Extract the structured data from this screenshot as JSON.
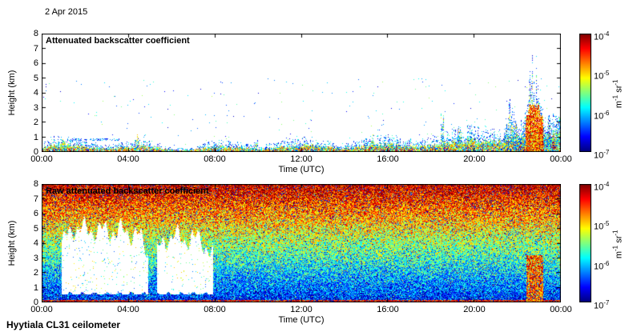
{
  "figure": {
    "date_label": "2 Apr 2015",
    "footer": "Hyytiala CL31 ceilometer",
    "background_color": "#ffffff",
    "axis_color": "#000000"
  },
  "chart_data": [
    {
      "type": "heatmap",
      "panel": "top",
      "title": "Attenuated backscatter coefficient",
      "xlabel": "Time (UTC)",
      "ylabel": "Height (km)",
      "x_ticks": [
        "00:00",
        "04:00",
        "08:00",
        "12:00",
        "16:00",
        "20:00",
        "00:00"
      ],
      "x_tick_hours": [
        0,
        4,
        8,
        12,
        16,
        20,
        24
      ],
      "x_range_hours": [
        0,
        24
      ],
      "y_ticks": [
        "8",
        "7",
        "6",
        "5",
        "4",
        "3",
        "2",
        "1",
        "0"
      ],
      "y_range_km": [
        0,
        8
      ],
      "grid": false,
      "colorbar": {
        "colormap": "jet",
        "scale": "log10",
        "ticks": [
          "10^-4",
          "10^-5",
          "10^-6",
          "10^-7"
        ],
        "range_min": "10^-7",
        "range_max": "10^-4",
        "unit": "m^-1 sr^-1"
      },
      "features": {
        "background": "white below colour-scale minimum",
        "boundary_layer": {
          "depth_km_night": 0.45,
          "deepens_after_h": 14,
          "depth_km_evening": 1.0
        },
        "plume": {
          "t_start_h": 20.9,
          "t_end_h": 23.7,
          "peak_t_h": 22.75,
          "max_height_km": 4.2,
          "core_t_start_h": 22.35,
          "core_t_end_h": 23.15,
          "core_height_km": 3.2
        },
        "spikes": [
          {
            "t_h": 1.0,
            "height_km": 1.2
          },
          {
            "t_h": 4.4,
            "height_km": 0.9
          },
          {
            "t_h": 9.9,
            "height_km": 0.8
          },
          {
            "t_h": 15.3,
            "height_km": 1.0
          },
          {
            "t_h": 18.5,
            "height_km": 2.3
          },
          {
            "t_h": 19.3,
            "height_km": 1.4
          },
          {
            "t_h": 23.85,
            "height_km": 2.0
          }
        ],
        "residual_layer": {
          "t_start_h": 1.3,
          "t_end_h": 3.6,
          "height_km": 0.85
        }
      }
    },
    {
      "type": "heatmap",
      "panel": "bottom",
      "title": "Raw attenuated backscatter coefficient",
      "xlabel": "Time (UTC)",
      "ylabel": "Height (km)",
      "x_ticks": [
        "00:00",
        "04:00",
        "08:00",
        "12:00",
        "16:00",
        "20:00",
        "00:00"
      ],
      "x_tick_hours": [
        0,
        4,
        8,
        12,
        16,
        20,
        24
      ],
      "x_range_hours": [
        0,
        24
      ],
      "y_ticks": [
        "8",
        "7",
        "6",
        "5",
        "4",
        "3",
        "2",
        "1",
        "0"
      ],
      "y_range_km": [
        0,
        8
      ],
      "grid": false,
      "colorbar": {
        "colormap": "jet",
        "scale": "log10",
        "ticks": [
          "10^-4",
          "10^-5",
          "10^-6",
          "10^-7"
        ],
        "range_min": "10^-7",
        "range_max": "10^-4",
        "unit": "m^-1 sr^-1"
      },
      "features": {
        "noise": "range-dependent speckle noise, blue/cyan near surface grading to orange/red near 8 km",
        "surface_return_km": 0.18,
        "white_gaps": [
          {
            "t_start_h": 0.9,
            "t_end_h": 4.9,
            "h_bottom_km": 0.55,
            "h_top_km": 5.1
          },
          {
            "t_start_h": 5.3,
            "t_end_h": 7.9,
            "h_bottom_km": 0.55,
            "h_top_km": 4.5
          }
        ],
        "red_streak": {
          "t_start_h": 22.4,
          "t_end_h": 23.15,
          "h_top_km": 3.2
        }
      }
    }
  ]
}
